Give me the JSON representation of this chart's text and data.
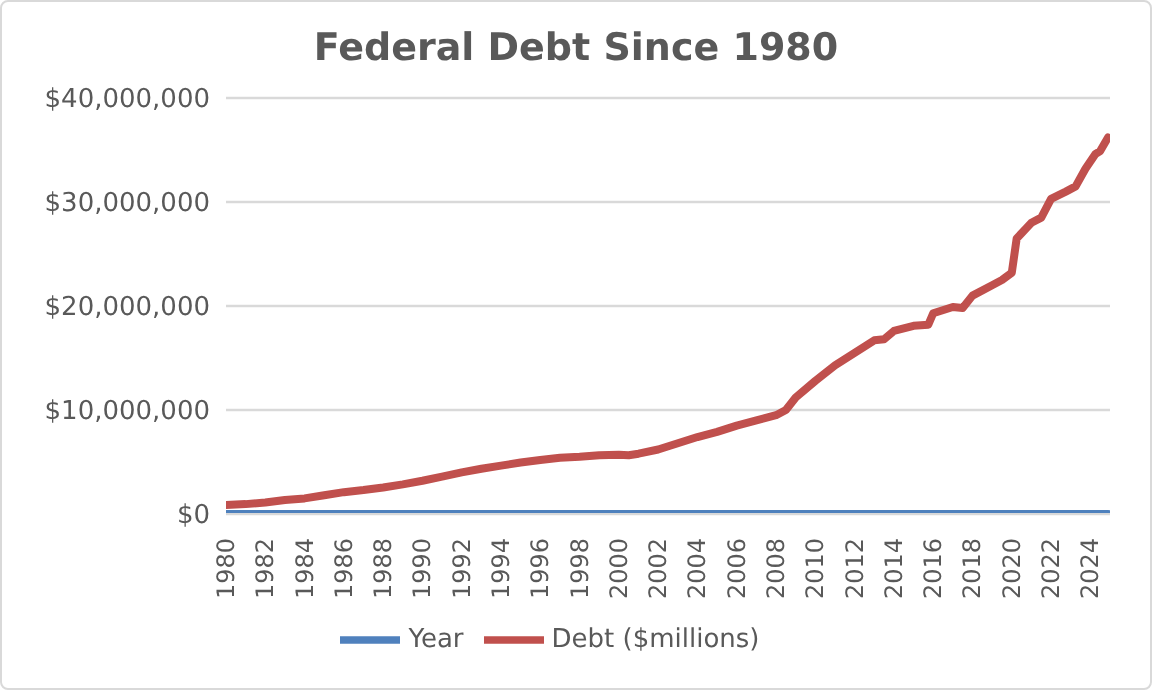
{
  "chart_data": {
    "type": "line",
    "title": "Federal Debt Since 1980",
    "legend": "bottom",
    "grid": "y",
    "marker": "none",
    "line_style": "solid",
    "xlim": [
      1980,
      2025
    ],
    "xticks": [
      1980,
      1982,
      1984,
      1986,
      1988,
      1990,
      1992,
      1994,
      1996,
      1998,
      2000,
      2002,
      2004,
      2006,
      2008,
      2010,
      2012,
      2014,
      2016,
      2018,
      2020,
      2022,
      2024
    ],
    "ylim": [
      0,
      40000000
    ],
    "yticks": [
      {
        "value": 0,
        "label": "$0"
      },
      {
        "value": 10000000,
        "label": "$10,000,000"
      },
      {
        "value": 20000000,
        "label": "$20,000,000"
      },
      {
        "value": 30000000,
        "label": "$30,000,000"
      },
      {
        "value": 40000000,
        "label": "$40,000,000"
      }
    ],
    "series": [
      {
        "name": "Year",
        "color": "#4f81bd",
        "x": [
          1980,
          1985,
          1990,
          1995,
          2000,
          2005,
          2010,
          2015,
          2020,
          2024.9
        ],
        "values": [
          1980,
          1985,
          1990,
          1995,
          2000,
          2005,
          2010,
          2015,
          2020,
          2024
        ]
      },
      {
        "name": "Debt ($millions)",
        "color": "#c0504d",
        "x": [
          1980,
          1981,
          1982,
          1983,
          1984,
          1985,
          1986,
          1987,
          1988,
          1989,
          1990,
          1991,
          1992,
          1993,
          1994,
          1995,
          1996,
          1997,
          1998,
          1999,
          2000,
          2000.5,
          2001,
          2002,
          2003,
          2004,
          2005,
          2006,
          2007,
          2008,
          2008.5,
          2009,
          2010,
          2011,
          2012,
          2013,
          2013.5,
          2014,
          2015,
          2015.75,
          2016,
          2017,
          2017.5,
          2018,
          2019,
          2019.5,
          2020,
          2020.25,
          2020.75,
          2021,
          2021.5,
          2022,
          2022.75,
          2023.25,
          2023.75,
          2024.25,
          2024.5,
          2024.9
        ],
        "values": [
          860000,
          950000,
          1100000,
          1350000,
          1500000,
          1800000,
          2100000,
          2300000,
          2550000,
          2850000,
          3200000,
          3600000,
          4000000,
          4350000,
          4650000,
          4950000,
          5200000,
          5400000,
          5500000,
          5650000,
          5700000,
          5650000,
          5800000,
          6200000,
          6800000,
          7400000,
          7900000,
          8500000,
          9000000,
          9500000,
          10000000,
          11200000,
          12800000,
          14300000,
          15500000,
          16700000,
          16800000,
          17600000,
          18100000,
          18200000,
          19300000,
          19900000,
          19800000,
          21000000,
          22000000,
          22500000,
          23200000,
          26500000,
          27500000,
          28000000,
          28500000,
          30300000,
          31000000,
          31500000,
          33200000,
          34600000,
          34900000,
          36200000
        ]
      }
    ]
  }
}
